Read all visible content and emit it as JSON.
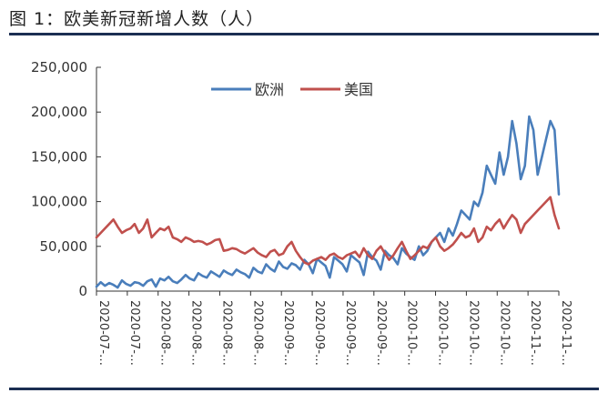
{
  "figure": {
    "title": "图 1：欧美新冠新增人数（人）"
  },
  "chart_data": {
    "type": "line",
    "title": "图 1：欧美新冠新增人数（人）",
    "xlabel": "",
    "ylabel": "",
    "ylim": [
      0,
      250000
    ],
    "y_ticks": [
      "0",
      "50,000",
      "100,000",
      "150,000",
      "200,000",
      "250,000"
    ],
    "x_tick_labels": [
      "2020-07-…",
      "2020-07-…",
      "2020-08-…",
      "2020-08-…",
      "2020-08-…",
      "2020-08-…",
      "2020-09-…",
      "2020-09-…",
      "2020-09-…",
      "2020-09-…",
      "2020-10-…",
      "2020-10-…",
      "2020-10-…",
      "2020-10-…",
      "2020-11-…",
      "2020-11-…"
    ],
    "legend": {
      "position": "top-center"
    },
    "grid": false,
    "series": [
      {
        "name": "欧洲",
        "color": "#4a7ebb",
        "values": [
          5000,
          10000,
          6000,
          9000,
          7000,
          4000,
          12000,
          8000,
          6000,
          10000,
          9000,
          6000,
          11000,
          13000,
          5000,
          14000,
          12000,
          16000,
          11000,
          9000,
          13000,
          18000,
          14000,
          12000,
          20000,
          17000,
          15000,
          22000,
          19000,
          16000,
          23000,
          20000,
          18000,
          24000,
          21000,
          19000,
          15000,
          26000,
          22000,
          20000,
          30000,
          25000,
          22000,
          33000,
          27000,
          25000,
          31000,
          29000,
          24000,
          35000,
          30000,
          20000,
          36000,
          32000,
          28000,
          15000,
          38000,
          34000,
          30000,
          22000,
          40000,
          36000,
          32000,
          18000,
          44000,
          38000,
          34000,
          24000,
          45000,
          40000,
          37000,
          30000,
          48000,
          42000,
          38000,
          35000,
          50000,
          40000,
          45000,
          55000,
          60000,
          65000,
          55000,
          70000,
          62000,
          75000,
          90000,
          85000,
          80000,
          100000,
          95000,
          110000,
          140000,
          130000,
          120000,
          155000,
          130000,
          150000,
          190000,
          165000,
          125000,
          140000,
          195000,
          180000,
          130000,
          150000,
          170000,
          190000,
          180000,
          108000
        ]
      },
      {
        "name": "美国",
        "color": "#c0504d",
        "values": [
          60000,
          65000,
          70000,
          75000,
          80000,
          72000,
          65000,
          68000,
          70000,
          75000,
          65000,
          70000,
          80000,
          60000,
          65000,
          70000,
          68000,
          72000,
          60000,
          58000,
          55000,
          60000,
          58000,
          55000,
          56000,
          55000,
          52000,
          54000,
          57000,
          58000,
          45000,
          46000,
          48000,
          47000,
          44000,
          42000,
          45000,
          48000,
          43000,
          40000,
          38000,
          44000,
          46000,
          40000,
          42000,
          50000,
          55000,
          45000,
          38000,
          32000,
          30000,
          34000,
          36000,
          38000,
          35000,
          40000,
          42000,
          38000,
          36000,
          40000,
          42000,
          44000,
          38000,
          48000,
          40000,
          36000,
          45000,
          50000,
          42000,
          35000,
          40000,
          48000,
          55000,
          45000,
          36000,
          40000,
          45000,
          50000,
          48000,
          55000,
          60000,
          50000,
          45000,
          48000,
          52000,
          58000,
          65000,
          60000,
          62000,
          70000,
          55000,
          60000,
          72000,
          68000,
          75000,
          80000,
          70000,
          78000,
          85000,
          80000,
          65000,
          75000,
          80000,
          85000,
          90000,
          95000,
          100000,
          105000,
          85000,
          70000
        ]
      }
    ]
  }
}
